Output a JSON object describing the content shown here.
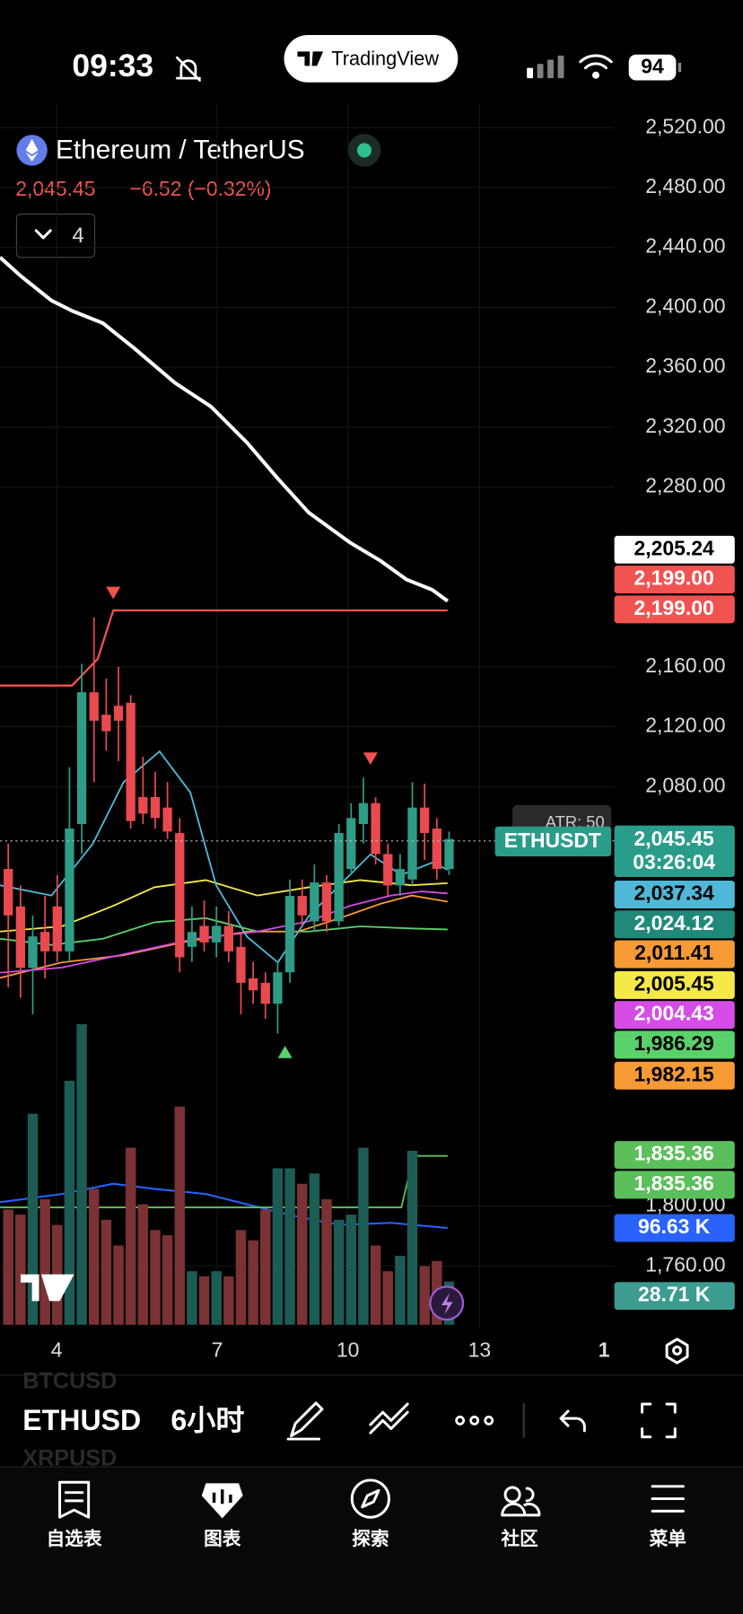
{
  "status_bar": {
    "time": "09:33",
    "battery": "94"
  },
  "app_title": "TradingView",
  "symbol": {
    "name": "Ethereum / TetherUS",
    "price": "2,045.45",
    "change": "−6.52 (−0.32%)"
  },
  "indicators_button": "4",
  "price_axis": {
    "ticks": [
      {
        "value": 2520,
        "label": "2,520.00"
      },
      {
        "value": 2480,
        "label": "2,480.00"
      },
      {
        "value": 2440,
        "label": "2,440.00"
      },
      {
        "value": 2400,
        "label": "2,400.00"
      },
      {
        "value": 2360,
        "label": "2,360.00"
      },
      {
        "value": 2320,
        "label": "2,320.00"
      },
      {
        "value": 2280,
        "label": "2,280.00"
      },
      {
        "value": 2160,
        "label": "2,160.00"
      },
      {
        "value": 2120,
        "label": "2,120.00"
      },
      {
        "value": 2080,
        "label": "2,080.00"
      },
      {
        "value": 1800,
        "label": "1,800.00"
      },
      {
        "value": 1760,
        "label": "1,760.00"
      }
    ]
  },
  "price_tags": [
    {
      "label": "2,205.24",
      "color": "#ffffff",
      "text_color": "#000000"
    },
    {
      "label": "2,199.00",
      "color": "#f05350",
      "text_color": "#ffffff"
    },
    {
      "label": "2,199.00",
      "color": "#f05350",
      "text_color": "#ffffff"
    },
    {
      "label": "2,045.45",
      "color": "#2a9d8a",
      "text_color": "#ffffff"
    },
    {
      "label": "2,037.34",
      "color": "#4fb8d8",
      "text_color": "#000000"
    },
    {
      "label": "2,024.12",
      "color": "#21897a",
      "text_color": "#ffffff"
    },
    {
      "label": "2,011.41",
      "color": "#f59a35",
      "text_color": "#000000"
    },
    {
      "label": "2,005.45",
      "color": "#f5e94a",
      "text_color": "#000000"
    },
    {
      "label": "2,004.43",
      "color": "#d64ce6",
      "text_color": "#ffffff"
    },
    {
      "label": "1,986.29",
      "color": "#5ad16b",
      "text_color": "#000000"
    },
    {
      "label": "1,982.15",
      "color": "#f59a35",
      "text_color": "#000000"
    },
    {
      "label": "1,835.36",
      "color": "#5bbf5b",
      "text_color": "#ffffff"
    },
    {
      "label": "1,835.36",
      "color": "#5bbf5b",
      "text_color": "#ffffff"
    },
    {
      "label": "96.63 K",
      "color": "#2962ff",
      "text_color": "#ffffff"
    },
    {
      "label": "28.71 K",
      "color": "#3b9c8f",
      "text_color": "#ffffff"
    }
  ],
  "countdown": "03:26:04",
  "series_label": "ETHUSDT",
  "atr_label": "ATR: 50",
  "candles": {
    "open": [
      2025,
      2000,
      1959,
      1983,
      2000,
      1970,
      2055,
      2143,
      2128,
      2134,
      2136,
      2073,
      2073,
      2066,
      2049,
      1973,
      1987,
      1976,
      1987,
      1973,
      1952,
      1949,
      1935,
      1956,
      2007,
      1990,
      2016,
      1990,
      2025,
      2055,
      2069,
      2035,
      2014,
      2018,
      2066,
      2052,
      2025
    ],
    "high": [
      2042,
      2014,
      1994,
      2007,
      2021,
      2093,
      2162,
      2193,
      2152,
      2160,
      2141,
      2100,
      2090,
      2083,
      2059,
      2000,
      2004,
      2000,
      1997,
      1983,
      1963,
      1956,
      1963,
      2018,
      2018,
      2028,
      2021,
      2055,
      2069,
      2086,
      2073,
      2042,
      2035,
      2083,
      2082,
      2059,
      2050
    ],
    "low": [
      1946,
      1939,
      1928,
      1952,
      1963,
      1963,
      2035,
      2083,
      2104,
      2097,
      2052,
      2055,
      2052,
      2045,
      1956,
      1963,
      1970,
      1966,
      1963,
      1928,
      1935,
      1925,
      1915,
      1949,
      1987,
      1983,
      1983,
      1987,
      2021,
      2042,
      2028,
      2007,
      2007,
      2014,
      2031,
      2018,
      2021
    ],
    "close": [
      1994,
      1959,
      1980,
      1970,
      1970,
      2052,
      2143,
      2124,
      2117,
      2124,
      2057,
      2062,
      2059,
      2050,
      1966,
      1983,
      1976,
      1987,
      1970,
      1949,
      1944,
      1935,
      1956,
      2007,
      1994,
      2016,
      1990,
      2049,
      2059,
      2069,
      2035,
      2014,
      2025,
      2066,
      2049,
      2025,
      2045
    ]
  },
  "volume": [
    112,
    107,
    205,
    122,
    97,
    237,
    292,
    132,
    102,
    77,
    172,
    117,
    92,
    87,
    212,
    52,
    47,
    52,
    47,
    92,
    82,
    112,
    152,
    152,
    137,
    147,
    122,
    102,
    107,
    172,
    77,
    52,
    67,
    169,
    57,
    62,
    42
  ],
  "x_axis": {
    "ticks": [
      "4",
      "7",
      "10",
      "13",
      "1"
    ]
  },
  "toolbar": {
    "symbols": [
      "BTCUSD",
      "ETHUSD",
      "XRPUSD"
    ],
    "interval": "6小时"
  },
  "tabs": [
    "自选表",
    "图表",
    "探索",
    "社区",
    "菜单"
  ]
}
